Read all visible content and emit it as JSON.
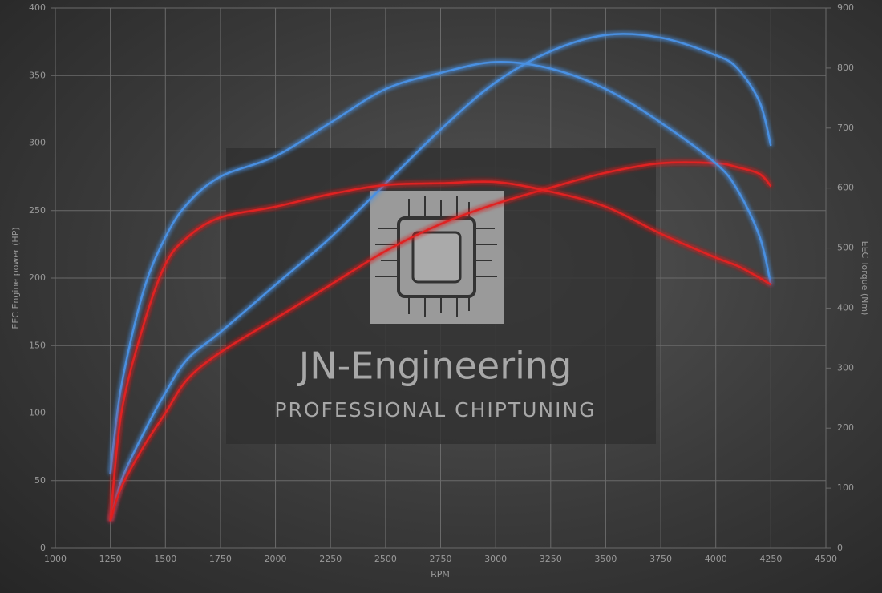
{
  "chart_data": {
    "type": "line",
    "xlabel": "RPM",
    "ylabel": "EEC Engine power (HP)",
    "y2label": "EEC Torque (Nm)",
    "watermark": {
      "title": "JN-Engineering",
      "subtitle": "PROFESSIONAL CHIPTUNING"
    },
    "x": [
      1250,
      1300,
      1400,
      1500,
      1600,
      1750,
      2000,
      2250,
      2500,
      2750,
      3000,
      3250,
      3500,
      3750,
      4000,
      4100,
      4200,
      4250
    ],
    "series": [
      {
        "color": "#4a90e2",
        "axis": "y",
        "values": [
          20,
          50,
          85,
          115,
          140,
          160,
          195,
          230,
          270,
          310,
          345,
          368,
          380,
          378,
          365,
          355,
          330,
          298
        ]
      },
      {
        "color": "#e02424",
        "axis": "y",
        "values": [
          20,
          45,
          75,
          100,
          125,
          145,
          170,
          195,
          220,
          240,
          255,
          267,
          278,
          285,
          285,
          282,
          277,
          268
        ]
      },
      {
        "color": "#4a90e2",
        "axis": "y2",
        "values": [
          124,
          270,
          428,
          518,
          574,
          619,
          653,
          709,
          765,
          792,
          810,
          799,
          765,
          709,
          641,
          596,
          518,
          439
        ]
      },
      {
        "color": "#e02424",
        "axis": "y2",
        "values": [
          45,
          225,
          371,
          473,
          518,
          551,
          569,
          590,
          605,
          608,
          610,
          594,
          569,
          524,
          484,
          470,
          450,
          439
        ]
      }
    ],
    "xlim": [
      1000,
      4500
    ],
    "xticks": [
      1000,
      1250,
      1500,
      1750,
      2000,
      2250,
      2500,
      2750,
      3000,
      3250,
      3500,
      3750,
      4000,
      4250,
      4500
    ],
    "ylim": [
      0,
      400
    ],
    "yticks": [
      0,
      50,
      100,
      150,
      200,
      250,
      300,
      350,
      400
    ],
    "y2lim": [
      0,
      900
    ],
    "y2ticks": [
      0,
      100,
      200,
      300,
      400,
      500,
      600,
      700,
      800,
      900
    ],
    "grid": true
  }
}
